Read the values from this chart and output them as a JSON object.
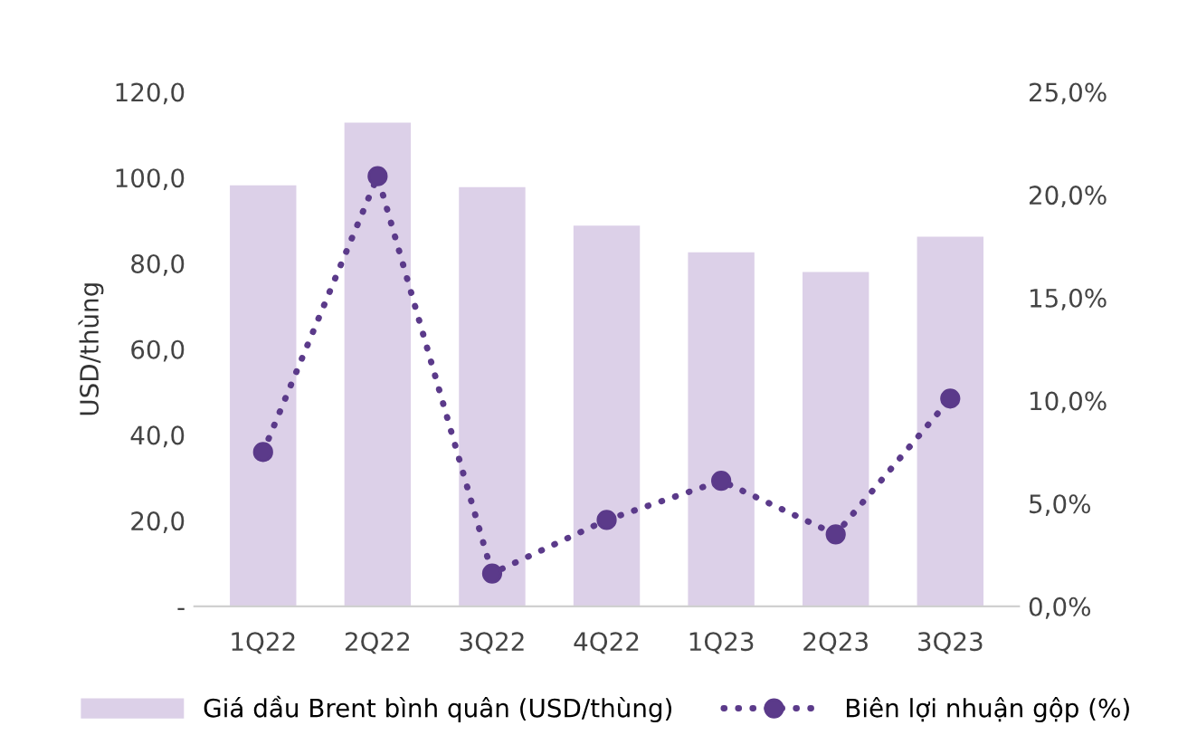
{
  "chart_data": {
    "type": "bar",
    "categories": [
      "1Q22",
      "2Q22",
      "3Q22",
      "4Q22",
      "1Q23",
      "2Q23",
      "3Q23"
    ],
    "ylabel": "USD/thùng",
    "series": [
      {
        "name": "Giá dầu Brent bình quân (USD/thùng)",
        "color": "#dcd0e8",
        "values": [
          98.2,
          112.8,
          97.8,
          88.8,
          82.6,
          78.0,
          86.2
        ]
      },
      {
        "name": "Biên lợi nhuận gộp (%)",
        "type": "line",
        "axis": "y2",
        "color": "#5b3a8a",
        "marker": "circle",
        "line_style": "dotted",
        "values": [
          7.5,
          20.9,
          1.6,
          4.2,
          6.1,
          3.5,
          10.1
        ]
      }
    ],
    "ylim": [
      0,
      120
    ],
    "yticks": [
      {
        "value": 0,
        "label": "-"
      },
      {
        "value": 20,
        "label": "20,0"
      },
      {
        "value": 40,
        "label": "40,0"
      },
      {
        "value": 60,
        "label": "60,0"
      },
      {
        "value": 80,
        "label": "80,0"
      },
      {
        "value": 100,
        "label": "100,0"
      },
      {
        "value": 120,
        "label": "120,0"
      }
    ],
    "y2lim": [
      0,
      25
    ],
    "y2ticks": [
      {
        "value": 0,
        "label": "0,0%"
      },
      {
        "value": 5,
        "label": "5,0%"
      },
      {
        "value": 10,
        "label": "10,0%"
      },
      {
        "value": 15,
        "label": "15,0%"
      },
      {
        "value": 20,
        "label": "20,0%"
      },
      {
        "value": 25,
        "label": "25,0%"
      }
    ],
    "legend": "bottom",
    "grid": false
  }
}
